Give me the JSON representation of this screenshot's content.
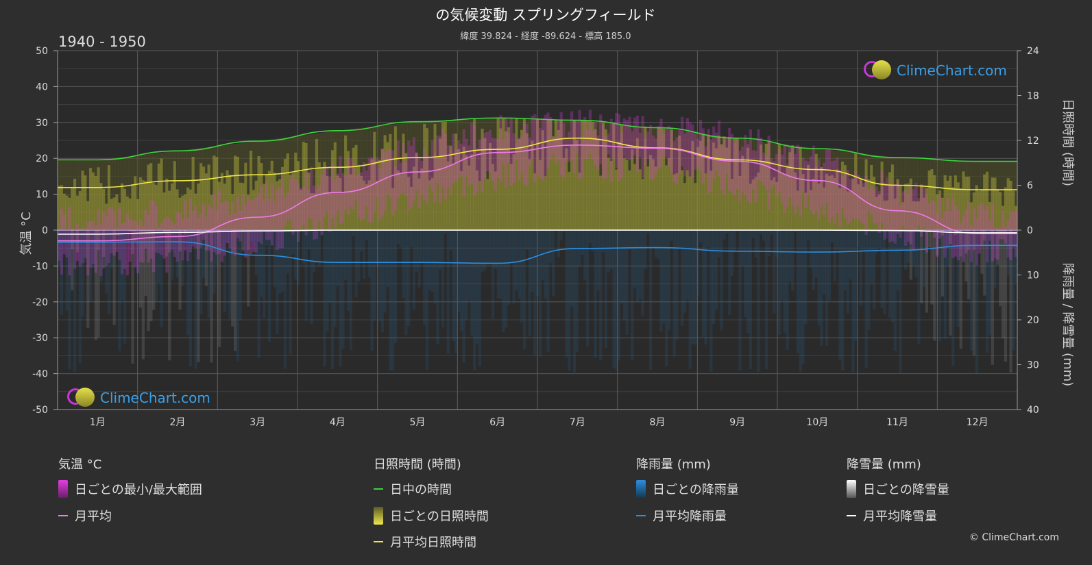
{
  "header": {
    "title": "の気候変動 スプリングフィールド",
    "subtitle": "緯度 39.824 - 経度 -89.624 - 標高 185.0",
    "period": "1940 - 1950"
  },
  "axes": {
    "left_title": "気温 °C",
    "right_top_title": "日照時間 (時間)",
    "right_bottom_title": "降雨量 / 降雪量 (mm)"
  },
  "branding": {
    "logo_text": "ClimeChart.com",
    "copyright": "© ClimeChart.com"
  },
  "legend": {
    "temperature": {
      "heading": "気温 °C",
      "range": "日ごとの最小/最大範囲",
      "avg": "月平均"
    },
    "sunshine": {
      "heading": "日照時間 (時間)",
      "daylight": "日中の時間",
      "daily": "日ごとの日照時間",
      "avg": "月平均日照時間"
    },
    "rain": {
      "heading": "降雨量 (mm)",
      "daily": "日ごとの降雨量",
      "avg": "月平均降雨量"
    },
    "snow": {
      "heading": "降雪量 (mm)",
      "daily": "日ごとの降雪量",
      "avg": "月平均降雪量"
    }
  },
  "colors": {
    "background": "#2e2e2e",
    "temp_range": "#e23ee0",
    "temp_avg": "#f07be8",
    "daylight": "#3ed43e",
    "sunshine_fill": "#b5b43a",
    "sunshine_avg": "#f0e84a",
    "rain": "#2c8fe0",
    "snow": "#ffffff"
  },
  "chart_data": {
    "type": "line",
    "categories": [
      "1月",
      "2月",
      "3月",
      "4月",
      "5月",
      "6月",
      "7月",
      "8月",
      "9月",
      "10月",
      "11月",
      "12月"
    ],
    "left_axis": {
      "min": -50,
      "max": 50,
      "ticks": [
        50,
        40,
        30,
        20,
        10,
        0,
        -10,
        -20,
        -30,
        -40,
        -50
      ]
    },
    "right_top_axis": {
      "min": 0,
      "max": 24,
      "ticks": [
        24,
        18,
        12,
        6,
        0
      ]
    },
    "right_bottom_axis": {
      "min": 0,
      "max": 40,
      "ticks": [
        10,
        20,
        30,
        40
      ]
    },
    "series": [
      {
        "name": "日中の時間",
        "axis": "sun",
        "values": [
          9.4,
          10.6,
          11.9,
          13.3,
          14.5,
          15.0,
          14.7,
          13.7,
          12.3,
          10.9,
          9.7,
          9.2
        ]
      },
      {
        "name": "月平均日照時間",
        "axis": "sun",
        "values": [
          5.7,
          6.6,
          7.4,
          8.4,
          9.7,
          10.8,
          12.3,
          11.0,
          9.4,
          8.1,
          6.0,
          5.4
        ]
      },
      {
        "name": "月平均",
        "axis": "temp",
        "values": [
          -3.0,
          -1.8,
          3.6,
          10.5,
          16.2,
          21.6,
          23.7,
          22.8,
          19.2,
          13.8,
          5.4,
          -1.0
        ]
      },
      {
        "name": "月平均降雨量",
        "axis": "precip",
        "values": [
          2.7,
          2.6,
          5.6,
          7.2,
          7.2,
          7.4,
          4.1,
          3.9,
          4.7,
          4.9,
          4.5,
          3.4
        ]
      },
      {
        "name": "月平均降雪量",
        "axis": "precip",
        "values": [
          0.9,
          0.5,
          0.2,
          0.0,
          0.0,
          0.0,
          0.0,
          0.0,
          0.0,
          0.0,
          0.1,
          0.6
        ]
      }
    ],
    "daily_temp_range": {
      "min": [
        -9,
        -8,
        -3,
        3,
        9,
        15,
        18,
        17,
        12,
        6,
        -1,
        -6
      ],
      "max": [
        3,
        5,
        10,
        17,
        23,
        28,
        30,
        29,
        26,
        20,
        11,
        4
      ]
    },
    "grid": true
  }
}
